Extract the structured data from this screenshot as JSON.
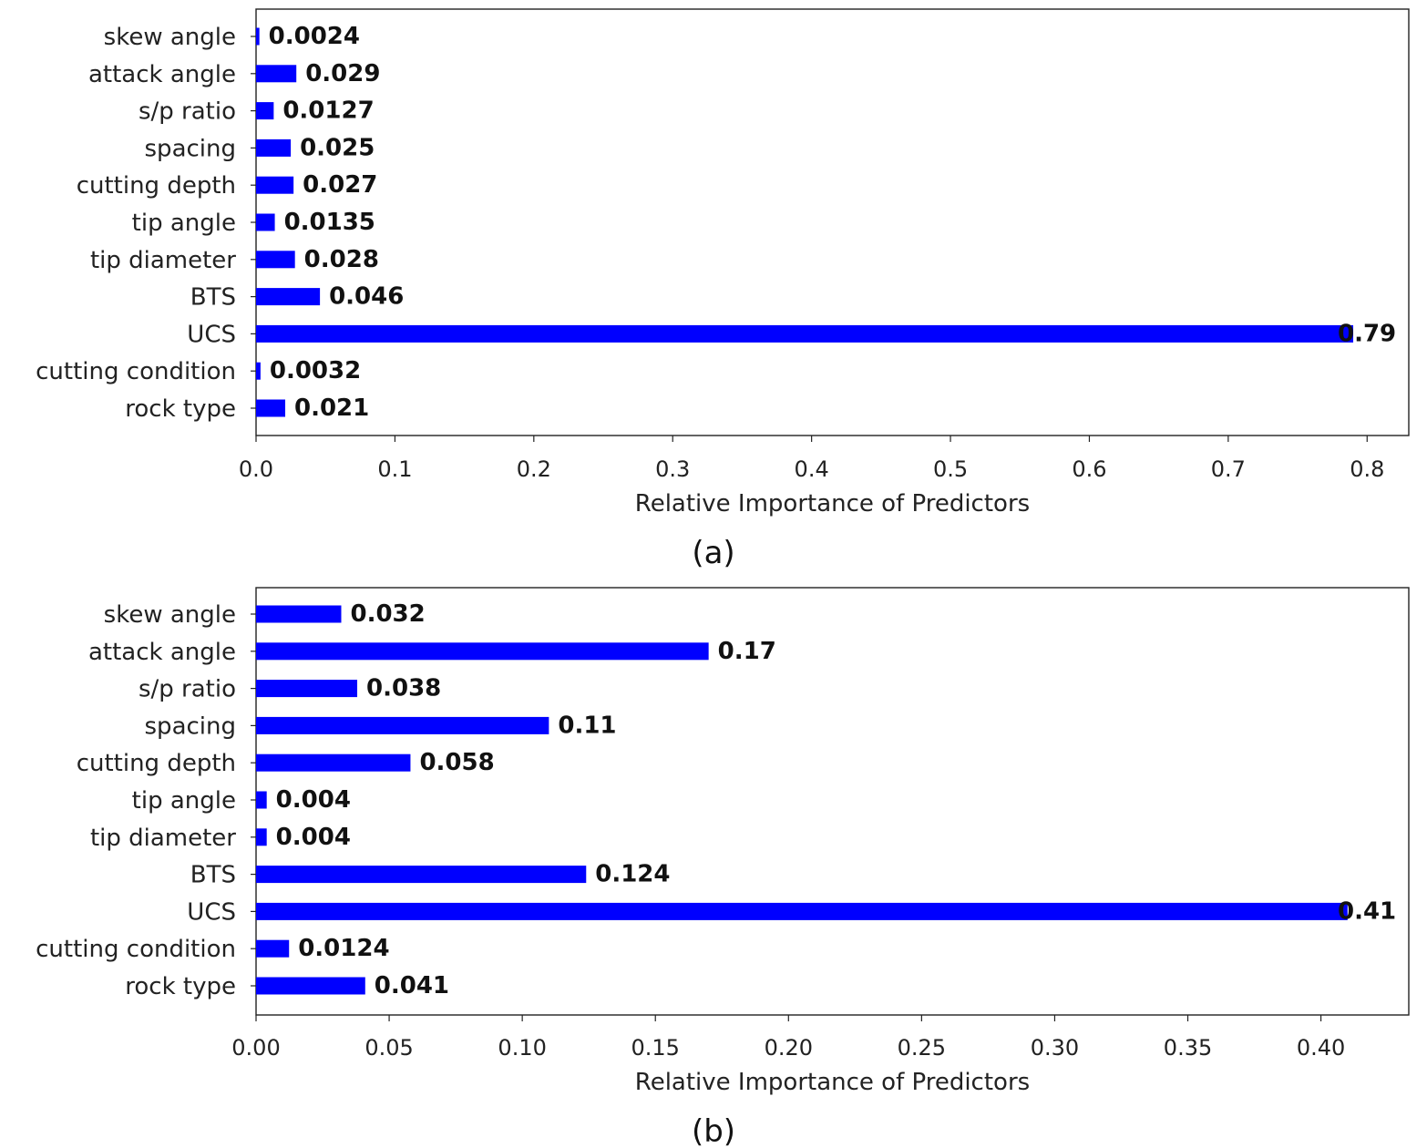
{
  "chart_data": [
    {
      "type": "bar",
      "orientation": "horizontal",
      "caption": "(a)",
      "categories": [
        "skew angle",
        "attack angle",
        "s/p ratio",
        "spacing",
        "cutting depth",
        "tip angle",
        "tip diameter ",
        "BTS",
        "UCS",
        "cutting condition",
        "rock type"
      ],
      "values": [
        0.0024,
        0.029,
        0.0127,
        0.025,
        0.027,
        0.0135,
        0.028,
        0.046,
        0.79,
        0.0032,
        0.021
      ],
      "value_labels": [
        "0.0024",
        "0.029",
        "0.0127",
        "0.025",
        "0.027",
        "0.0135",
        "0.028",
        "0.046",
        "0.79",
        "0.0032",
        "0.021"
      ],
      "xlabel": "Relative Importance of Predictors",
      "ylabel": "",
      "xlim": [
        0,
        0.83
      ],
      "xticks": [
        0,
        0.1,
        0.2,
        0.3,
        0.4,
        0.5,
        0.6,
        0.7,
        0.8
      ],
      "xtick_labels": [
        "0.0",
        "0.1",
        "0.2",
        "0.3",
        "0.4",
        "0.5",
        "0.6",
        "0.7",
        "0.8"
      ],
      "bar_color": "#0000ff",
      "grid": false
    },
    {
      "type": "bar",
      "orientation": "horizontal",
      "caption": "(b)",
      "categories": [
        "skew angle",
        "attack angle",
        "s/p ratio",
        "spacing",
        "cutting depth",
        "tip angle",
        "tip diameter ",
        "BTS",
        "UCS",
        "cutting condition",
        "rock type"
      ],
      "values": [
        0.032,
        0.17,
        0.038,
        0.11,
        0.058,
        0.004,
        0.004,
        0.124,
        0.41,
        0.0124,
        0.041
      ],
      "value_labels": [
        "0.032",
        "0.17",
        "0.038",
        "0.11",
        "0.058",
        "0.004",
        "0.004",
        "0.124",
        "0.41",
        "0.0124",
        "0.041"
      ],
      "xlabel": "Relative Importance of Predictors",
      "ylabel": "",
      "xlim": [
        0,
        0.433
      ],
      "xticks": [
        0,
        0.05,
        0.1,
        0.15,
        0.2,
        0.25,
        0.3,
        0.35,
        0.4
      ],
      "xtick_labels": [
        "0.00",
        "0.05",
        "0.10",
        "0.15",
        "0.20",
        "0.25",
        "0.30",
        "0.35",
        "0.40"
      ],
      "bar_color": "#0000ff",
      "grid": false
    }
  ]
}
